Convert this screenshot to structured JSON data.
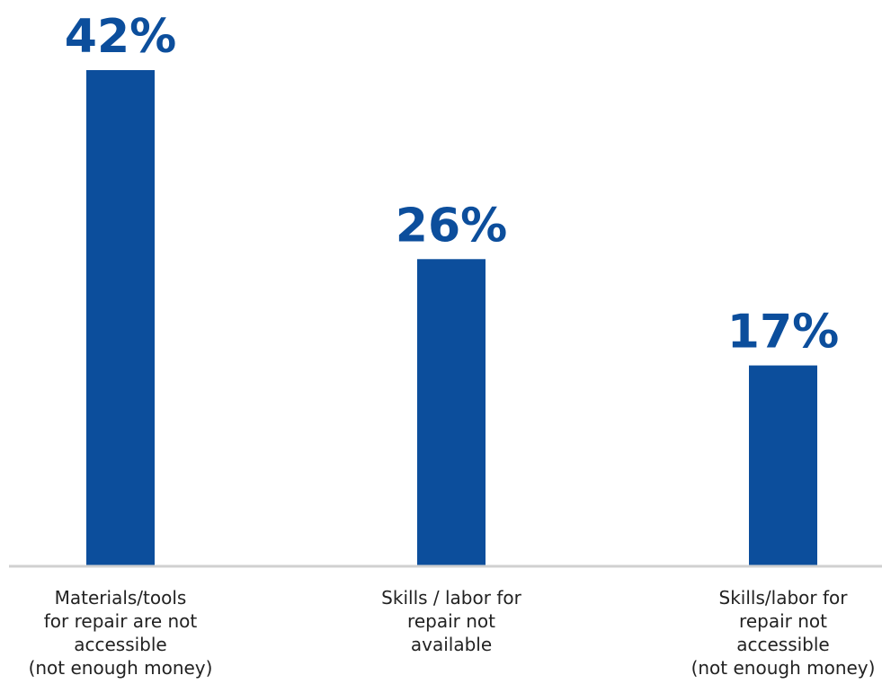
{
  "chart_data": {
    "type": "bar",
    "categories": [
      [
        "Materials/tools",
        "for repair are not",
        "accessible",
        "(not enough money)"
      ],
      [
        "Skills / labor for",
        "repair not",
        "available"
      ],
      [
        "Skills/labor for",
        "repair not",
        "accessible",
        "(not enough money)"
      ]
    ],
    "values": [
      42,
      26,
      17
    ],
    "value_labels": [
      "42%",
      "26%",
      "17%"
    ],
    "ylim": [
      0,
      50
    ],
    "grid": false,
    "bar_color": "#0c4e9c",
    "axis_color": "#d0d0d0"
  }
}
